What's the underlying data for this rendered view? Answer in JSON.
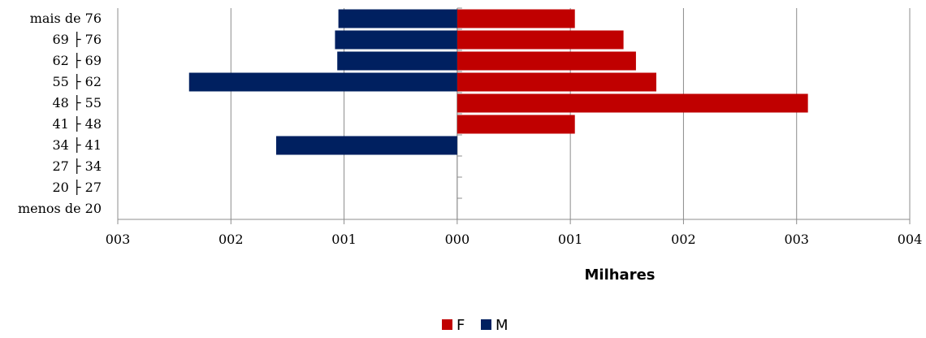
{
  "chart_data": {
    "type": "bar",
    "orientation": "horizontal",
    "title": "",
    "xlabel": "Milhares",
    "ylabel": "",
    "categories": [
      "menos de 20",
      "20 ├ 27",
      "27 ├ 34",
      "34 ├ 41",
      "41 ├ 48",
      "48 ├ 55",
      "55 ├ 62",
      "62 ├ 69",
      "69 ├ 76",
      "mais de 76"
    ],
    "series": [
      {
        "name": "F",
        "color": "#C00000",
        "values": [
          0,
          0,
          0,
          0,
          1.04,
          3.1,
          1.76,
          1.58,
          1.47,
          1.04
        ]
      },
      {
        "name": "M",
        "color": "#002060",
        "values": [
          0,
          0,
          0,
          -1.6,
          0,
          0,
          -2.37,
          -1.06,
          -1.08,
          -1.05
        ]
      }
    ],
    "xlim": [
      -3,
      4
    ],
    "x_ticks": [
      -3,
      -2,
      -1,
      0,
      1,
      2,
      3,
      4
    ],
    "x_tick_labels": [
      "003",
      "002",
      "001",
      "000",
      "001",
      "002",
      "003",
      "004"
    ],
    "grid": "vertical",
    "legend_position": "bottom"
  }
}
